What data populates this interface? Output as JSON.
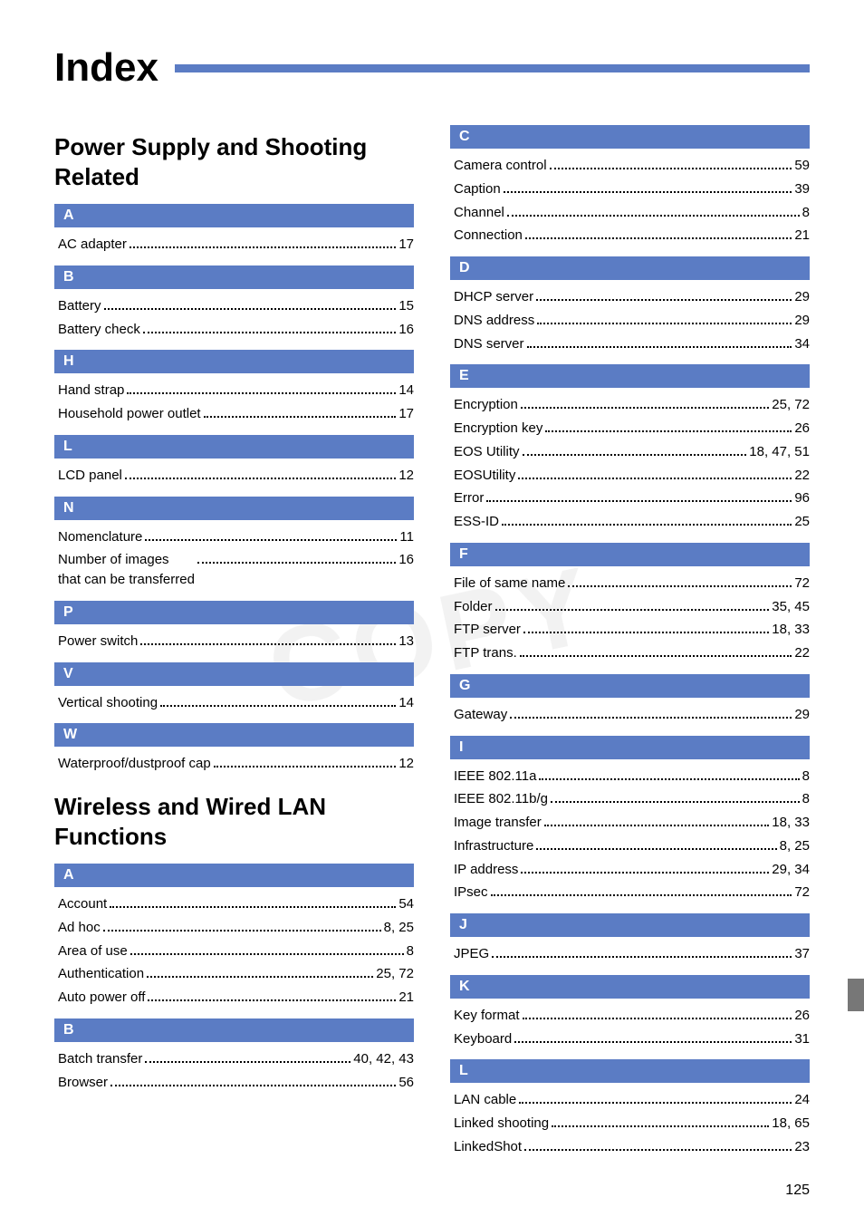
{
  "title": "Index",
  "watermark": "COPY",
  "page_number": "125",
  "colors": {
    "accent": "#5b7cc4",
    "text": "#000000",
    "header_text": "#ffffff",
    "watermark": "#e6e6e6",
    "side_tab": "#777777"
  },
  "typography": {
    "title_size_pt": 33,
    "subtitle_size_pt": 20,
    "section_letter_pt": 12,
    "entry_pt": 11
  },
  "left": {
    "group1": {
      "subtitle": "Power Supply and Shooting Related",
      "sections": [
        {
          "letter": "A",
          "items": [
            {
              "label": "AC adapter",
              "pages": "17"
            }
          ]
        },
        {
          "letter": "B",
          "items": [
            {
              "label": "Battery",
              "pages": "15"
            },
            {
              "label": "Battery check",
              "pages": "16"
            }
          ]
        },
        {
          "letter": "H",
          "items": [
            {
              "label": "Hand strap",
              "pages": "14"
            },
            {
              "label": "Household power outlet",
              "pages": "17"
            }
          ]
        },
        {
          "letter": "L",
          "items": [
            {
              "label": "LCD panel",
              "pages": "12"
            }
          ]
        },
        {
          "letter": "N",
          "items": [
            {
              "label": "Nomenclature",
              "pages": "11"
            },
            {
              "label": "Number of images\nthat can be transferred",
              "pages": "16"
            }
          ]
        },
        {
          "letter": "P",
          "items": [
            {
              "label": "Power switch",
              "pages": "13"
            }
          ]
        },
        {
          "letter": "V",
          "items": [
            {
              "label": "Vertical shooting",
              "pages": "14"
            }
          ]
        },
        {
          "letter": "W",
          "items": [
            {
              "label": "Waterproof/dustproof cap",
              "pages": "12"
            }
          ]
        }
      ]
    },
    "group2": {
      "subtitle": "Wireless and Wired LAN Functions",
      "sections": [
        {
          "letter": "A",
          "items": [
            {
              "label": "Account",
              "pages": "54"
            },
            {
              "label": "Ad hoc",
              "pages": "8, 25"
            },
            {
              "label": "Area of use",
              "pages": "8"
            },
            {
              "label": "Authentication",
              "pages": "25, 72"
            },
            {
              "label": "Auto power off",
              "pages": "21"
            }
          ]
        },
        {
          "letter": "B",
          "items": [
            {
              "label": "Batch transfer",
              "pages": "40, 42, 43"
            },
            {
              "label": "Browser",
              "pages": "56"
            }
          ]
        }
      ]
    }
  },
  "right": {
    "sections": [
      {
        "letter": "C",
        "items": [
          {
            "label": "Camera control",
            "pages": "59"
          },
          {
            "label": "Caption",
            "pages": "39"
          },
          {
            "label": "Channel",
            "pages": "8"
          },
          {
            "label": "Connection",
            "pages": "21"
          }
        ]
      },
      {
        "letter": "D",
        "items": [
          {
            "label": "DHCP server",
            "pages": "29"
          },
          {
            "label": "DNS address",
            "pages": "29"
          },
          {
            "label": "DNS server",
            "pages": "34"
          }
        ]
      },
      {
        "letter": "E",
        "items": [
          {
            "label": "Encryption",
            "pages": "25, 72"
          },
          {
            "label": "Encryption key",
            "pages": "26"
          },
          {
            "label": "EOS Utility",
            "pages": "18, 47, 51"
          },
          {
            "label": "EOSUtility",
            "pages": "22"
          },
          {
            "label": "Error",
            "pages": "96"
          },
          {
            "label": "ESS-ID",
            "pages": "25"
          }
        ]
      },
      {
        "letter": "F",
        "items": [
          {
            "label": "File of same name",
            "pages": "72"
          },
          {
            "label": "Folder",
            "pages": "35, 45"
          },
          {
            "label": "FTP server",
            "pages": "18, 33"
          },
          {
            "label": "FTP trans.",
            "pages": "22"
          }
        ]
      },
      {
        "letter": "G",
        "items": [
          {
            "label": "Gateway",
            "pages": "29"
          }
        ]
      },
      {
        "letter": "I",
        "items": [
          {
            "label": "IEEE 802.11a",
            "pages": "8"
          },
          {
            "label": "IEEE 802.11b/g",
            "pages": "8"
          },
          {
            "label": "Image transfer",
            "pages": "18, 33"
          },
          {
            "label": "Infrastructure",
            "pages": "8, 25"
          },
          {
            "label": "IP address",
            "pages": "29, 34"
          },
          {
            "label": "IPsec",
            "pages": "72"
          }
        ]
      },
      {
        "letter": "J",
        "items": [
          {
            "label": "JPEG",
            "pages": "37"
          }
        ]
      },
      {
        "letter": "K",
        "items": [
          {
            "label": "Key format",
            "pages": "26"
          },
          {
            "label": "Keyboard",
            "pages": "31"
          }
        ]
      },
      {
        "letter": "L",
        "items": [
          {
            "label": "LAN cable",
            "pages": "24"
          },
          {
            "label": "Linked shooting",
            "pages": "18, 65"
          },
          {
            "label": "LinkedShot",
            "pages": "23"
          }
        ]
      }
    ]
  }
}
